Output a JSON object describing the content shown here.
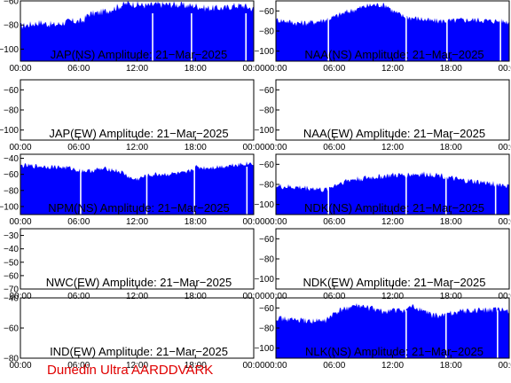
{
  "footer": "Dunedin Ultra AARDDVARK",
  "chart_data": [
    {
      "type": "area",
      "title": "JAP(NS) Amplitude: 21-Mar-2025",
      "ylim": [
        -110,
        -60
      ],
      "yticks": [
        -100,
        -80,
        -60
      ],
      "xticks": [
        "00:00",
        "06:00",
        "12:00",
        "18:00",
        "00:00"
      ],
      "color": "#0000ff",
      "x_hours": [
        0,
        2,
        3.5,
        5,
        6.4,
        7,
        8,
        9,
        10,
        11,
        12,
        13,
        14,
        15,
        16,
        17,
        18,
        19,
        20,
        21,
        22,
        23,
        24
      ],
      "values": [
        -81,
        -78,
        -80,
        -77,
        -77,
        -71,
        -70,
        -68,
        -65,
        -62,
        -63,
        -64,
        -63,
        -63,
        -63,
        -64,
        -64,
        -66,
        -66,
        -66,
        -64,
        -64,
        -67
      ],
      "dropouts": [
        13.6,
        17.6,
        23.2
      ]
    },
    {
      "type": "area",
      "title": "NAA(NS) Amplitude: 21-Mar-2025",
      "ylim": [
        -110,
        -50
      ],
      "yticks": [
        -100,
        -80,
        -60
      ],
      "xticks": [
        "00:00",
        "06:00",
        "12:00",
        "18:00",
        "00:00"
      ],
      "color": "#0000ff",
      "x_hours": [
        0,
        1,
        2,
        3,
        4,
        5,
        6,
        7,
        8,
        9,
        10,
        11,
        11.5,
        12,
        13,
        14,
        15,
        16,
        17,
        18,
        19,
        20,
        21,
        22,
        23,
        24
      ],
      "values": [
        -69,
        -70,
        -72,
        -72,
        -71,
        -69,
        -66,
        -62,
        -59,
        -56,
        -54,
        -54,
        -55,
        -60,
        -65,
        -67,
        -68,
        -70,
        -70,
        -70,
        -69,
        -69,
        -69,
        -70,
        -70,
        -71
      ],
      "dropouts": [
        5.4,
        13.4,
        17.6,
        23.1
      ]
    },
    {
      "type": "area",
      "title": "JAP(EW) Amplitude: 21-Mar-2025",
      "ylim": [
        -110,
        -50
      ],
      "yticks": [
        -100,
        -80,
        -60
      ],
      "xticks": [
        "00:00",
        "06:00",
        "12:00",
        "18:00",
        "00:00"
      ],
      "color": "#0000ff",
      "x_hours": [],
      "values": [],
      "dropouts": []
    },
    {
      "type": "area",
      "title": "NAA(EW) Amplitude: 21-Mar-2025",
      "ylim": [
        -110,
        -50
      ],
      "yticks": [
        -100,
        -80,
        -60
      ],
      "xticks": [
        "00:00",
        "06:00",
        "12:00",
        "18:00",
        "00:00"
      ],
      "color": "#0000ff",
      "x_hours": [],
      "values": [],
      "dropouts": []
    },
    {
      "type": "area",
      "title": "NPM(NS) Amplitude: 21-Mar-2025",
      "ylim": [
        -110,
        -35
      ],
      "yticks": [
        -100,
        -80,
        -60,
        -40
      ],
      "xticks": [
        "00:00",
        "06:00",
        "12:00",
        "18:00",
        "00:00"
      ],
      "color": "#0000ff",
      "x_hours": [
        0,
        2,
        4,
        5,
        6,
        7,
        8,
        9,
        10,
        10.5,
        11,
        11.5,
        12,
        13,
        14,
        15,
        16,
        17,
        18,
        19,
        20,
        21,
        22,
        23,
        24
      ],
      "values": [
        -49,
        -50,
        -51,
        -52,
        -55,
        -56,
        -54,
        -53,
        -56,
        -58,
        -62,
        -66,
        -66,
        -62,
        -60,
        -60,
        -59,
        -59,
        -51,
        -52,
        -51,
        -50,
        -48,
        -47,
        -46
      ],
      "dropouts": [
        6.2,
        13.0,
        17.9,
        23.3
      ]
    },
    {
      "type": "area",
      "title": "NDK(NS) Amplitude: 21-Mar-2025",
      "ylim": [
        -110,
        -50
      ],
      "yticks": [
        -100,
        -80,
        -60
      ],
      "xticks": [
        "00:00",
        "06:00",
        "12:00",
        "18:00",
        "00:00"
      ],
      "color": "#0000ff",
      "x_hours": [
        0,
        2,
        4,
        5,
        6,
        7,
        8,
        9,
        10,
        11,
        12,
        13,
        14,
        15,
        16,
        17,
        18,
        19,
        20,
        21,
        22,
        23,
        24
      ],
      "values": [
        -82,
        -83,
        -84,
        -86,
        -81,
        -77,
        -75,
        -74,
        -73,
        -72,
        -71,
        -71,
        -70,
        -70,
        -70,
        -71,
        -74,
        -76,
        -77,
        -78,
        -79,
        -80,
        -82
      ],
      "dropouts": [
        5.4,
        13.4,
        17.5,
        22.6
      ]
    },
    {
      "type": "area",
      "title": "NWC(EW) Amplitude: 21-Mar-2025",
      "ylim": [
        -70,
        -25
      ],
      "yticks": [
        -70,
        -60,
        -50,
        -40,
        -30
      ],
      "xticks": [
        "00:00",
        "06:00",
        "12:00",
        "18:00",
        "00:00"
      ],
      "color": "#0000ff",
      "x_hours": [],
      "values": [],
      "dropouts": []
    },
    {
      "type": "area",
      "title": "NDK(EW) Amplitude: 21-Mar-2025",
      "ylim": [
        -110,
        -50
      ],
      "yticks": [
        -100,
        -80,
        -60
      ],
      "xticks": [
        "00:00",
        "06:00",
        "12:00",
        "18:00",
        "00:00"
      ],
      "color": "#0000ff",
      "x_hours": [],
      "values": [],
      "dropouts": []
    },
    {
      "type": "area",
      "title": "IND(EW) Amplitude: 21-Mar-2025",
      "ylim": [
        -80,
        -40
      ],
      "yticks": [
        -80,
        -60,
        -40
      ],
      "xticks": [
        "00:00",
        "06:00",
        "12:00",
        "18:00",
        "00:00"
      ],
      "color": "#0000ff",
      "x_hours": [],
      "values": [],
      "dropouts": []
    },
    {
      "type": "area",
      "title": "NLK(NS) Amplitude: 21-Mar-2025",
      "ylim": [
        -110,
        -50
      ],
      "yticks": [
        -100,
        -80,
        -60
      ],
      "xticks": [
        "00:00",
        "06:00",
        "12:00",
        "18:00",
        "00:00"
      ],
      "color": "#0000ff",
      "x_hours": [
        0,
        1,
        2,
        3,
        4,
        5,
        6,
        7,
        8,
        9,
        10,
        11,
        12,
        13,
        14,
        15,
        16,
        17,
        18,
        19,
        20,
        21,
        22,
        23,
        24
      ],
      "values": [
        -70,
        -71,
        -72,
        -73,
        -73,
        -73,
        -66,
        -61,
        -58,
        -59,
        -61,
        -64,
        -62,
        -63,
        -59,
        -62,
        -67,
        -68,
        -65,
        -63,
        -63,
        -62,
        -62,
        -62,
        -63
      ],
      "dropouts": [
        13.4,
        17.5,
        22.8
      ]
    }
  ]
}
